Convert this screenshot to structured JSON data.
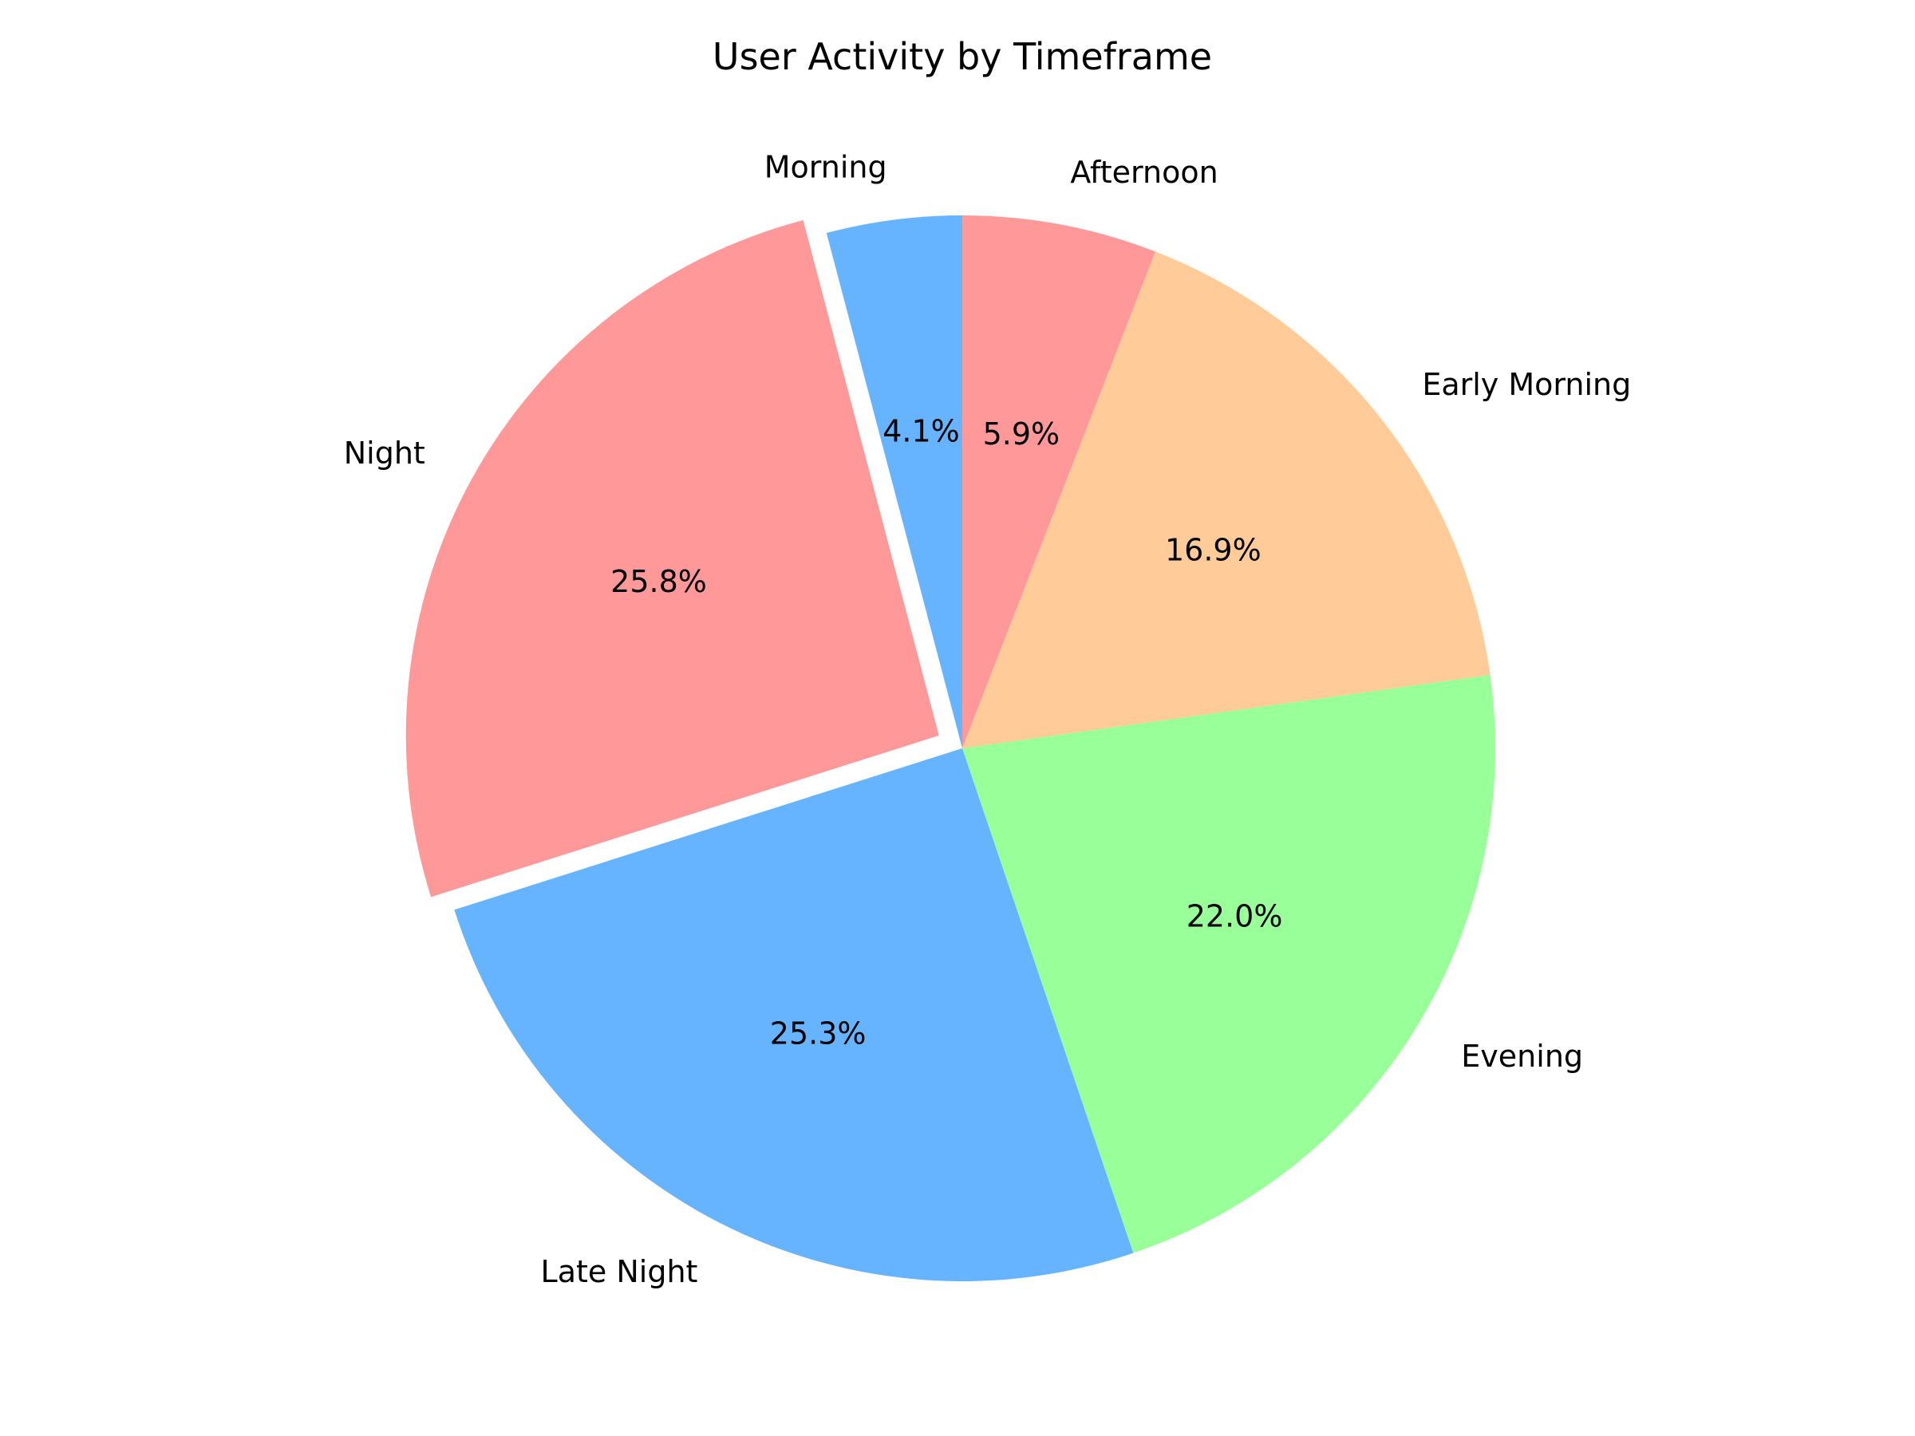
{
  "chart_data": {
    "type": "pie",
    "title": "User Activity by Timeframe",
    "start_angle_deg": 90,
    "direction": "counterclockwise",
    "slices": [
      {
        "label": "Morning",
        "value": 4.1,
        "pct_label": "4.1%",
        "color": "#66b3ff",
        "explode": 0
      },
      {
        "label": "Night",
        "value": 25.8,
        "pct_label": "25.8%",
        "color": "#ff9999",
        "explode": 0.05
      },
      {
        "label": "Late Night",
        "value": 25.3,
        "pct_label": "25.3%",
        "color": "#66b3ff",
        "explode": 0
      },
      {
        "label": "Evening",
        "value": 22.0,
        "pct_label": "22.0%",
        "color": "#99ff99",
        "explode": 0
      },
      {
        "label": "Early Morning",
        "value": 16.9,
        "pct_label": "16.9%",
        "color": "#ffcc99",
        "explode": 0
      },
      {
        "label": "Afternoon",
        "value": 5.9,
        "pct_label": "5.9%",
        "color": "#ff9999",
        "explode": 0
      }
    ]
  }
}
